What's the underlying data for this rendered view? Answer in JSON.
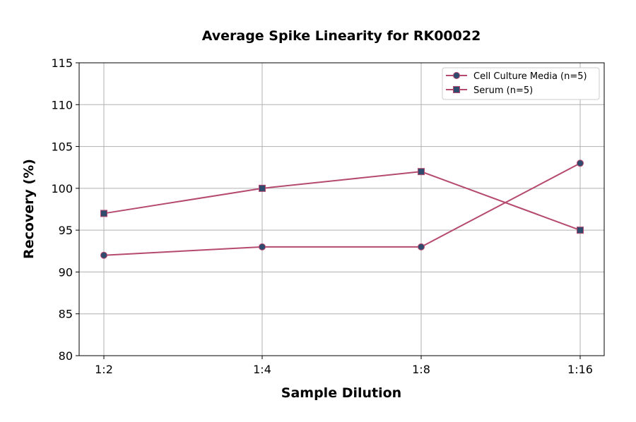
{
  "chart_data": {
    "type": "line",
    "title": "Average Spike Linearity for RK00022",
    "xlabel": "Sample Dilution",
    "ylabel": "Recovery (%)",
    "categories": [
      "1:2",
      "1:4",
      "1:8",
      "1:16"
    ],
    "ylim": [
      80,
      115
    ],
    "yticks": [
      80,
      85,
      90,
      95,
      100,
      105,
      110,
      115
    ],
    "grid": true,
    "legend_position": "top-right",
    "colors": {
      "line": "#b5496f",
      "marker": "#2f4b6e"
    },
    "series": [
      {
        "name": "Cell Culture Media (n=5)",
        "marker": "circle",
        "values": [
          92,
          93,
          93,
          103
        ]
      },
      {
        "name": "Serum (n=5)",
        "marker": "square",
        "values": [
          97,
          100,
          102,
          95
        ]
      }
    ]
  }
}
